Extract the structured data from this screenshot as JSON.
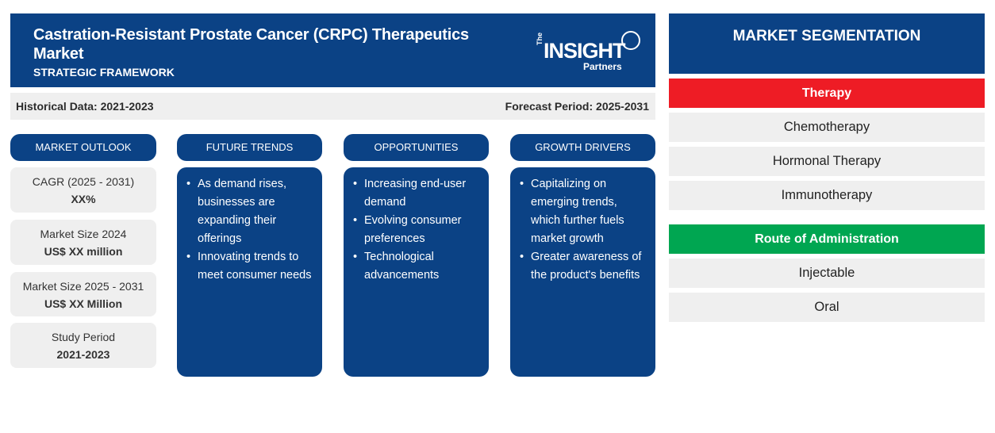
{
  "header": {
    "title": "Castration-Resistant Prostate Cancer (CRPC) Therapeutics Market",
    "subtitle": "STRATEGIC FRAMEWORK",
    "logo": {
      "the": "The",
      "insight": "INSIGHT",
      "partners": "Partners"
    }
  },
  "period": {
    "historical": "Historical Data: 2021-2023",
    "forecast": "Forecast Period: 2025-2031"
  },
  "columns": {
    "outlook": {
      "label": "MARKET OUTLOOK"
    },
    "trends": {
      "label": "FUTURE TRENDS",
      "items": [
        "As demand rises, businesses are expanding their offerings",
        "Innovating trends to meet consumer needs"
      ]
    },
    "opportunities": {
      "label": "OPPORTUNITIES",
      "items": [
        "Increasing end-user demand",
        "Evolving consumer preferences",
        "Technological advancements"
      ]
    },
    "drivers": {
      "label": "GROWTH DRIVERS",
      "items": [
        "Capitalizing on emerging trends, which further fuels market growth",
        "Greater awareness of the product's benefits"
      ]
    }
  },
  "outlook_stats": [
    {
      "label": "CAGR (2025 - 2031)",
      "value": "XX%"
    },
    {
      "label": "Market Size 2024",
      "value": "US$ XX million"
    },
    {
      "label": "Market Size 2025 - 2031",
      "value": "US$ XX Million"
    },
    {
      "label": "Study Period",
      "value": "2021-2023"
    }
  ],
  "segmentation": {
    "title": "MARKET SEGMENTATION",
    "groups": [
      {
        "heading": "Therapy",
        "color": "#ee1c25",
        "items": [
          "Chemotherapy",
          "Hormonal Therapy",
          "Immunotherapy"
        ]
      },
      {
        "heading": "Route of Administration",
        "color": "#00a651",
        "items": [
          "Injectable",
          "Oral"
        ]
      }
    ]
  },
  "colors": {
    "navy": "#0b4285",
    "light_gray": "#efefef",
    "red": "#ee1c25",
    "green": "#00a651"
  }
}
